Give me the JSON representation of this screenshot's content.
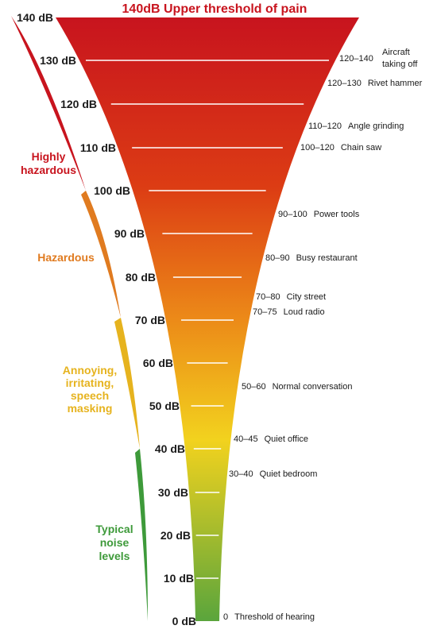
{
  "title": "140dB Upper threshold of pain",
  "levels": [
    "140 dB",
    "130 dB",
    "120 dB",
    "110 dB",
    "100 dB",
    "90 dB",
    "80 dB",
    "70 dB",
    "60 dB",
    "50 dB",
    "40 dB",
    "30 dB",
    "20 dB",
    "10 dB",
    "0 dB"
  ],
  "examples": [
    {
      "range": "120–140",
      "label": "Aircraft",
      "label2": "taking off"
    },
    {
      "range": "120–130",
      "label": "Rivet hammer"
    },
    {
      "range": "110–120",
      "label": "Angle grinding"
    },
    {
      "range": "100–120",
      "label": "Chain saw"
    },
    {
      "range": "90–100",
      "label": "Power tools"
    },
    {
      "range": "80–90",
      "label": "Busy restaurant"
    },
    {
      "range": "70–80",
      "label": "City street"
    },
    {
      "range": "70–75",
      "label": "Loud radio"
    },
    {
      "range": "50–60",
      "label": "Normal conversation"
    },
    {
      "range": "40–45",
      "label": "Quiet office"
    },
    {
      "range": "30–40",
      "label": "Quiet bedroom"
    },
    {
      "range": "0",
      "label": "Threshold of hearing"
    }
  ],
  "zones": [
    {
      "lines": [
        "Highly",
        "hazardous"
      ],
      "color": "#c8141e"
    },
    {
      "lines": [
        "Hazardous"
      ],
      "color": "#e07b20"
    },
    {
      "lines": [
        "Annoying,",
        "irritating,",
        "speech",
        "masking"
      ],
      "color": "#e6b31e"
    },
    {
      "lines": [
        "Typical",
        "noise",
        "levels"
      ],
      "color": "#3e9a3a"
    }
  ],
  "colors": {
    "top": "#c8141e",
    "upper": "#dc3c14",
    "middle": "#ec8a18",
    "lower": "#f2d21e",
    "bottom": "#5aa53c"
  }
}
